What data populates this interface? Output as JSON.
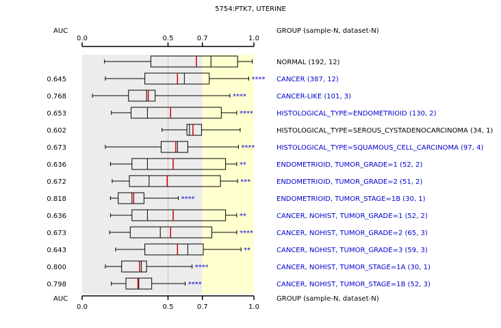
{
  "chart_data": {
    "type": "boxplot",
    "title": "5754:PTK7, UTERINE",
    "auc_label": "AUC",
    "group_header": "GROUP (sample-N, dataset-N)",
    "xlim": [
      0.0,
      1.0
    ],
    "x_ticks": [
      "0.0",
      "0.5",
      "0.7",
      "1.0"
    ],
    "shading": {
      "gray_range": [
        0.0,
        0.7
      ],
      "yellow_range": [
        0.7,
        1.0
      ],
      "gray_color": "#ececec",
      "yellow_color": "#ffffd0"
    },
    "colors": {
      "box": "#000000",
      "median": "#cc0000",
      "sig": "#0000cc",
      "label_blue": "#0000cc",
      "label_black": "#000000"
    },
    "groups": [
      {
        "label": "NORMAL (192, 12)",
        "auc": "",
        "sig": "",
        "color": "black",
        "whisker_low": 0.13,
        "q1": 0.4,
        "median": 0.665,
        "q3": 0.905,
        "whisker_high": 0.99,
        "mean": 0.75
      },
      {
        "label": "CANCER (387, 12)",
        "auc": "0.645",
        "sig": "****",
        "color": "blue",
        "whisker_low": 0.135,
        "q1": 0.365,
        "median": 0.555,
        "q3": 0.74,
        "whisker_high": 0.97,
        "mean": 0.595
      },
      {
        "label": "CANCER-LIKE (101, 3)",
        "auc": "0.768",
        "sig": "****",
        "color": "blue",
        "whisker_low": 0.06,
        "q1": 0.27,
        "median": 0.385,
        "q3": 0.425,
        "whisker_high": 0.86,
        "mean": 0.375
      },
      {
        "label": "HISTOLOGICAL_TYPE=ENDOMETRIOID (130, 2)",
        "auc": "0.653",
        "sig": "****",
        "color": "blue",
        "whisker_low": 0.17,
        "q1": 0.285,
        "median": 0.515,
        "q3": 0.81,
        "whisker_high": 0.9,
        "mean": 0.38
      },
      {
        "label": "HISTOLOGICAL_TYPE=SEROUS_CYSTADENOCARCINOMA (34, 1)",
        "auc": "0.602",
        "sig": "",
        "color": "black",
        "whisker_low": 0.465,
        "q1": 0.61,
        "median": 0.645,
        "q3": 0.695,
        "whisker_high": 0.92,
        "mean": 0.625
      },
      {
        "label": "HISTOLOGICAL_TYPE=SQUAMOUS_CELL_CARCINOMA (97, 4)",
        "auc": "0.673",
        "sig": "****",
        "color": "blue",
        "whisker_low": 0.135,
        "q1": 0.46,
        "median": 0.545,
        "q3": 0.615,
        "whisker_high": 0.91,
        "mean": 0.555
      },
      {
        "label": "ENDOMETRIOID, TUMOR_GRADE=1 (52, 2)",
        "auc": "0.636",
        "sig": "**",
        "color": "blue",
        "whisker_low": 0.165,
        "q1": 0.29,
        "median": 0.53,
        "q3": 0.835,
        "whisker_high": 0.9,
        "mean": 0.38
      },
      {
        "label": "ENDOMETRIOID, TUMOR_GRADE=2 (51, 2)",
        "auc": "0.672",
        "sig": "***",
        "color": "blue",
        "whisker_low": 0.175,
        "q1": 0.275,
        "median": 0.495,
        "q3": 0.805,
        "whisker_high": 0.905,
        "mean": 0.39
      },
      {
        "label": "ENDOMETRIOID, TUMOR_STAGE=1B (30, 1)",
        "auc": "0.818",
        "sig": "****",
        "color": "blue",
        "whisker_low": 0.165,
        "q1": 0.21,
        "median": 0.3,
        "q3": 0.36,
        "whisker_high": 0.56,
        "mean": 0.29
      },
      {
        "label": "CANCER, NOHIST, TUMOR_GRADE=1 (52, 2)",
        "auc": "0.636",
        "sig": "**",
        "color": "blue",
        "whisker_low": 0.165,
        "q1": 0.29,
        "median": 0.53,
        "q3": 0.835,
        "whisker_high": 0.9,
        "mean": 0.38
      },
      {
        "label": "CANCER, NOHIST, TUMOR_GRADE=2 (65, 3)",
        "auc": "0.673",
        "sig": "****",
        "color": "blue",
        "whisker_low": 0.16,
        "q1": 0.28,
        "median": 0.515,
        "q3": 0.755,
        "whisker_high": 0.9,
        "mean": 0.455
      },
      {
        "label": "CANCER, NOHIST, TUMOR_GRADE=3 (59, 3)",
        "auc": "0.643",
        "sig": "**",
        "color": "blue",
        "whisker_low": 0.195,
        "q1": 0.365,
        "median": 0.555,
        "q3": 0.705,
        "whisker_high": 0.925,
        "mean": 0.615
      },
      {
        "label": "CANCER, NOHIST, TUMOR_STAGE=1A (30, 1)",
        "auc": "0.800",
        "sig": "****",
        "color": "blue",
        "whisker_low": 0.135,
        "q1": 0.23,
        "median": 0.335,
        "q3": 0.375,
        "whisker_high": 0.64,
        "mean": 0.345
      },
      {
        "label": "CANCER, NOHIST, TUMOR_STAGE=1B (52, 3)",
        "auc": "0.798",
        "sig": "****",
        "color": "blue",
        "whisker_low": 0.17,
        "q1": 0.255,
        "median": 0.325,
        "q3": 0.405,
        "whisker_high": 0.6,
        "mean": 0.33
      }
    ]
  }
}
